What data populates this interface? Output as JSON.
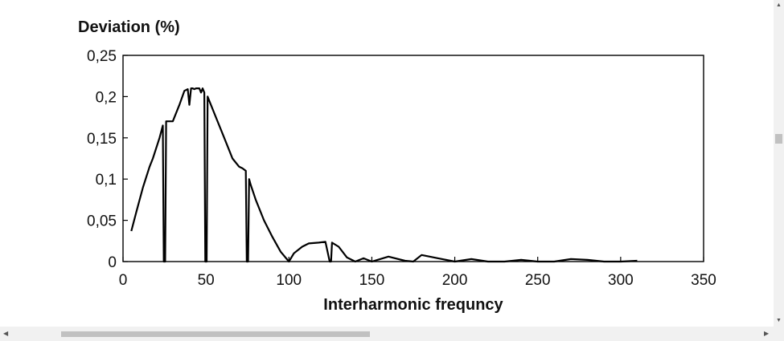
{
  "chart_data": {
    "type": "line",
    "title": "",
    "ylabel": "Deviation (%)",
    "xlabel": "Interharmonic frequncy",
    "xlim": [
      0,
      350
    ],
    "ylim": [
      0,
      0.25
    ],
    "x_ticks": [
      "0",
      "50",
      "100",
      "150",
      "200",
      "250",
      "300",
      "350"
    ],
    "y_ticks": [
      "0",
      "0,05",
      "0,1",
      "0,15",
      "0,2",
      "0,25"
    ],
    "grid": false,
    "color": "#000000",
    "series": [
      {
        "x": [
          5,
          8,
          12,
          16,
          18,
          22,
          24,
          24.6,
          25.4,
          26,
          28,
          30,
          34,
          37,
          39,
          40,
          41,
          42,
          43,
          44,
          46,
          47,
          48,
          49,
          49.6,
          50.4,
          51,
          53,
          56,
          60,
          64,
          66,
          70,
          72,
          74,
          74.6,
          75.4,
          76,
          77,
          80,
          85,
          90,
          95,
          100,
          103,
          108,
          112,
          118,
          122,
          124.6,
          125.4,
          126,
          130,
          135,
          140,
          145,
          150,
          155,
          160,
          170,
          175,
          180,
          190,
          200,
          210,
          220,
          230,
          240,
          250,
          260,
          270,
          280,
          290,
          300,
          310
        ],
        "y": [
          0.037,
          0.06,
          0.09,
          0.115,
          0.125,
          0.15,
          0.165,
          0,
          0,
          0.17,
          0.17,
          0.17,
          0.19,
          0.207,
          0.209,
          0.19,
          0.21,
          0.21,
          0.209,
          0.21,
          0.21,
          0.205,
          0.21,
          0.205,
          0,
          0,
          0.2,
          0.19,
          0.175,
          0.155,
          0.135,
          0.125,
          0.115,
          0.113,
          0.11,
          0,
          0,
          0.1,
          0.093,
          0.075,
          0.05,
          0.03,
          0.012,
          0,
          0.01,
          0.018,
          0.022,
          0.023,
          0.024,
          0,
          0,
          0.023,
          0.018,
          0.005,
          0,
          0.004,
          0,
          0.003,
          0.006,
          0.001,
          0,
          0.008,
          0.004,
          0,
          0.003,
          0,
          0,
          0.002,
          0,
          0,
          0.003,
          0.002,
          0,
          0,
          0.001
        ]
      }
    ]
  }
}
